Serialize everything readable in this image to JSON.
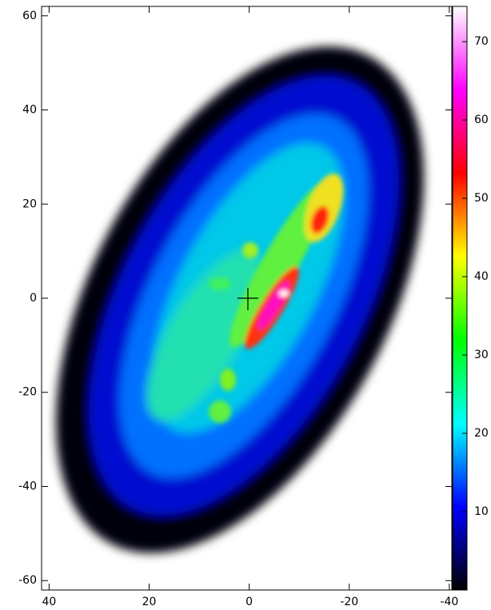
{
  "chart_data": {
    "type": "heatmap",
    "xlim": [
      41.5,
      -40.5
    ],
    "ylim": [
      -62,
      62
    ],
    "xticks": [
      40,
      20,
      0,
      -20,
      -40
    ],
    "yticks": [
      60,
      40,
      20,
      0,
      -20,
      -40,
      -60
    ],
    "colorbar": {
      "lim": [
        0,
        74.5
      ],
      "ticks": [
        10,
        20,
        30,
        40,
        50,
        60,
        70
      ],
      "colors": [
        "#000000",
        "#0000ff",
        "#00ffff",
        "#00ff00",
        "#ffff00",
        "#ff0000",
        "#ff00ff",
        "#ffffff"
      ]
    }
  }
}
